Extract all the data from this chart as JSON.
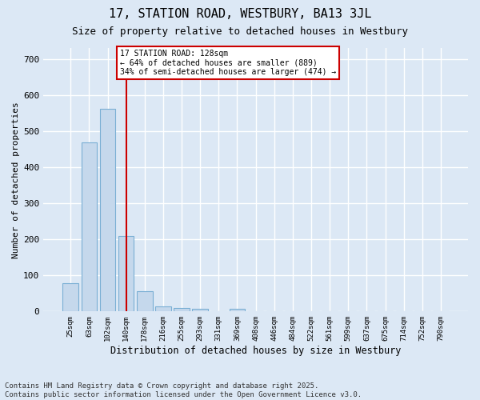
{
  "title1": "17, STATION ROAD, WESTBURY, BA13 3JL",
  "title2": "Size of property relative to detached houses in Westbury",
  "xlabel": "Distribution of detached houses by size in Westbury",
  "ylabel": "Number of detached properties",
  "categories": [
    "25sqm",
    "63sqm",
    "102sqm",
    "140sqm",
    "178sqm",
    "216sqm",
    "255sqm",
    "293sqm",
    "331sqm",
    "369sqm",
    "408sqm",
    "446sqm",
    "484sqm",
    "522sqm",
    "561sqm",
    "599sqm",
    "637sqm",
    "675sqm",
    "714sqm",
    "752sqm",
    "790sqm"
  ],
  "values": [
    78,
    468,
    562,
    208,
    57,
    15,
    9,
    8,
    0,
    8,
    0,
    0,
    0,
    0,
    0,
    0,
    0,
    0,
    0,
    0,
    0
  ],
  "bar_color": "#c5d8ec",
  "bar_edge_color": "#7aafd4",
  "vline_x": 3,
  "vline_color": "#cc0000",
  "annotation_text": "17 STATION ROAD: 128sqm\n← 64% of detached houses are smaller (889)\n34% of semi-detached houses are larger (474) →",
  "annotation_box_color": "#ffffff",
  "annotation_box_edge": "#cc0000",
  "ylim": [
    0,
    730
  ],
  "yticks": [
    0,
    100,
    200,
    300,
    400,
    500,
    600,
    700
  ],
  "bg_color": "#dce8f5",
  "grid_color": "#ffffff",
  "footer": "Contains HM Land Registry data © Crown copyright and database right 2025.\nContains public sector information licensed under the Open Government Licence v3.0."
}
